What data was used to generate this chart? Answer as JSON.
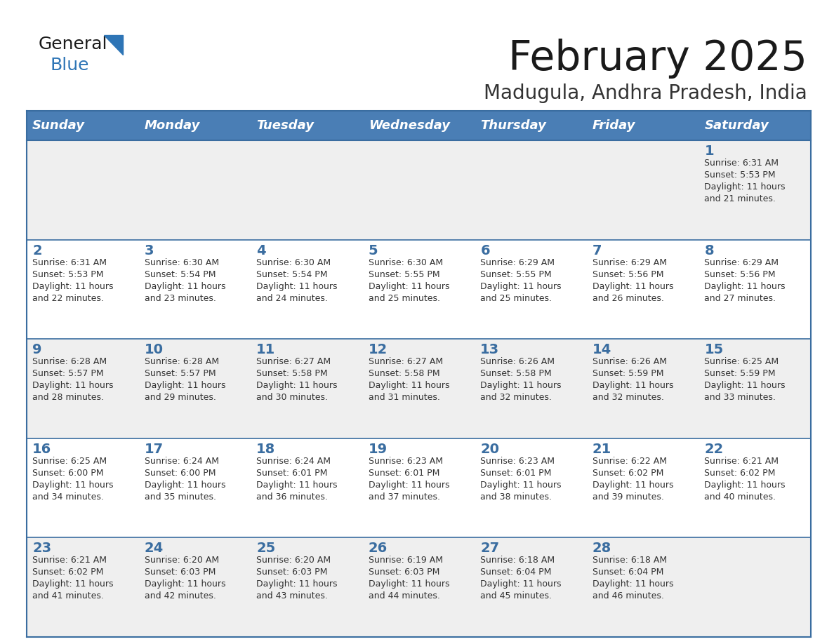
{
  "title": "February 2025",
  "subtitle": "Madugula, Andhra Pradesh, India",
  "days_of_week": [
    "Sunday",
    "Monday",
    "Tuesday",
    "Wednesday",
    "Thursday",
    "Friday",
    "Saturday"
  ],
  "header_bg": "#4a7eb5",
  "header_text": "#ffffff",
  "row_bg_odd": "#efefef",
  "row_bg_even": "#ffffff",
  "day_num_color": "#3a6da0",
  "cell_text_color": "#333333",
  "border_color": "#3a6da0",
  "title_color": "#1a1a1a",
  "subtitle_color": "#333333",
  "logo_general_color": "#1a1a1a",
  "logo_blue_color": "#2e75b6",
  "calendar": [
    [
      {
        "day": null,
        "sunrise": null,
        "sunset": null,
        "daylight_line1": null,
        "daylight_line2": null
      },
      {
        "day": null,
        "sunrise": null,
        "sunset": null,
        "daylight_line1": null,
        "daylight_line2": null
      },
      {
        "day": null,
        "sunrise": null,
        "sunset": null,
        "daylight_line1": null,
        "daylight_line2": null
      },
      {
        "day": null,
        "sunrise": null,
        "sunset": null,
        "daylight_line1": null,
        "daylight_line2": null
      },
      {
        "day": null,
        "sunrise": null,
        "sunset": null,
        "daylight_line1": null,
        "daylight_line2": null
      },
      {
        "day": null,
        "sunrise": null,
        "sunset": null,
        "daylight_line1": null,
        "daylight_line2": null
      },
      {
        "day": "1",
        "sunrise": "Sunrise: 6:31 AM",
        "sunset": "Sunset: 5:53 PM",
        "daylight_line1": "Daylight: 11 hours",
        "daylight_line2": "and 21 minutes."
      }
    ],
    [
      {
        "day": "2",
        "sunrise": "Sunrise: 6:31 AM",
        "sunset": "Sunset: 5:53 PM",
        "daylight_line1": "Daylight: 11 hours",
        "daylight_line2": "and 22 minutes."
      },
      {
        "day": "3",
        "sunrise": "Sunrise: 6:30 AM",
        "sunset": "Sunset: 5:54 PM",
        "daylight_line1": "Daylight: 11 hours",
        "daylight_line2": "and 23 minutes."
      },
      {
        "day": "4",
        "sunrise": "Sunrise: 6:30 AM",
        "sunset": "Sunset: 5:54 PM",
        "daylight_line1": "Daylight: 11 hours",
        "daylight_line2": "and 24 minutes."
      },
      {
        "day": "5",
        "sunrise": "Sunrise: 6:30 AM",
        "sunset": "Sunset: 5:55 PM",
        "daylight_line1": "Daylight: 11 hours",
        "daylight_line2": "and 25 minutes."
      },
      {
        "day": "6",
        "sunrise": "Sunrise: 6:29 AM",
        "sunset": "Sunset: 5:55 PM",
        "daylight_line1": "Daylight: 11 hours",
        "daylight_line2": "and 25 minutes."
      },
      {
        "day": "7",
        "sunrise": "Sunrise: 6:29 AM",
        "sunset": "Sunset: 5:56 PM",
        "daylight_line1": "Daylight: 11 hours",
        "daylight_line2": "and 26 minutes."
      },
      {
        "day": "8",
        "sunrise": "Sunrise: 6:29 AM",
        "sunset": "Sunset: 5:56 PM",
        "daylight_line1": "Daylight: 11 hours",
        "daylight_line2": "and 27 minutes."
      }
    ],
    [
      {
        "day": "9",
        "sunrise": "Sunrise: 6:28 AM",
        "sunset": "Sunset: 5:57 PM",
        "daylight_line1": "Daylight: 11 hours",
        "daylight_line2": "and 28 minutes."
      },
      {
        "day": "10",
        "sunrise": "Sunrise: 6:28 AM",
        "sunset": "Sunset: 5:57 PM",
        "daylight_line1": "Daylight: 11 hours",
        "daylight_line2": "and 29 minutes."
      },
      {
        "day": "11",
        "sunrise": "Sunrise: 6:27 AM",
        "sunset": "Sunset: 5:58 PM",
        "daylight_line1": "Daylight: 11 hours",
        "daylight_line2": "and 30 minutes."
      },
      {
        "day": "12",
        "sunrise": "Sunrise: 6:27 AM",
        "sunset": "Sunset: 5:58 PM",
        "daylight_line1": "Daylight: 11 hours",
        "daylight_line2": "and 31 minutes."
      },
      {
        "day": "13",
        "sunrise": "Sunrise: 6:26 AM",
        "sunset": "Sunset: 5:58 PM",
        "daylight_line1": "Daylight: 11 hours",
        "daylight_line2": "and 32 minutes."
      },
      {
        "day": "14",
        "sunrise": "Sunrise: 6:26 AM",
        "sunset": "Sunset: 5:59 PM",
        "daylight_line1": "Daylight: 11 hours",
        "daylight_line2": "and 32 minutes."
      },
      {
        "day": "15",
        "sunrise": "Sunrise: 6:25 AM",
        "sunset": "Sunset: 5:59 PM",
        "daylight_line1": "Daylight: 11 hours",
        "daylight_line2": "and 33 minutes."
      }
    ],
    [
      {
        "day": "16",
        "sunrise": "Sunrise: 6:25 AM",
        "sunset": "Sunset: 6:00 PM",
        "daylight_line1": "Daylight: 11 hours",
        "daylight_line2": "and 34 minutes."
      },
      {
        "day": "17",
        "sunrise": "Sunrise: 6:24 AM",
        "sunset": "Sunset: 6:00 PM",
        "daylight_line1": "Daylight: 11 hours",
        "daylight_line2": "and 35 minutes."
      },
      {
        "day": "18",
        "sunrise": "Sunrise: 6:24 AM",
        "sunset": "Sunset: 6:01 PM",
        "daylight_line1": "Daylight: 11 hours",
        "daylight_line2": "and 36 minutes."
      },
      {
        "day": "19",
        "sunrise": "Sunrise: 6:23 AM",
        "sunset": "Sunset: 6:01 PM",
        "daylight_line1": "Daylight: 11 hours",
        "daylight_line2": "and 37 minutes."
      },
      {
        "day": "20",
        "sunrise": "Sunrise: 6:23 AM",
        "sunset": "Sunset: 6:01 PM",
        "daylight_line1": "Daylight: 11 hours",
        "daylight_line2": "and 38 minutes."
      },
      {
        "day": "21",
        "sunrise": "Sunrise: 6:22 AM",
        "sunset": "Sunset: 6:02 PM",
        "daylight_line1": "Daylight: 11 hours",
        "daylight_line2": "and 39 minutes."
      },
      {
        "day": "22",
        "sunrise": "Sunrise: 6:21 AM",
        "sunset": "Sunset: 6:02 PM",
        "daylight_line1": "Daylight: 11 hours",
        "daylight_line2": "and 40 minutes."
      }
    ],
    [
      {
        "day": "23",
        "sunrise": "Sunrise: 6:21 AM",
        "sunset": "Sunset: 6:02 PM",
        "daylight_line1": "Daylight: 11 hours",
        "daylight_line2": "and 41 minutes."
      },
      {
        "day": "24",
        "sunrise": "Sunrise: 6:20 AM",
        "sunset": "Sunset: 6:03 PM",
        "daylight_line1": "Daylight: 11 hours",
        "daylight_line2": "and 42 minutes."
      },
      {
        "day": "25",
        "sunrise": "Sunrise: 6:20 AM",
        "sunset": "Sunset: 6:03 PM",
        "daylight_line1": "Daylight: 11 hours",
        "daylight_line2": "and 43 minutes."
      },
      {
        "day": "26",
        "sunrise": "Sunrise: 6:19 AM",
        "sunset": "Sunset: 6:03 PM",
        "daylight_line1": "Daylight: 11 hours",
        "daylight_line2": "and 44 minutes."
      },
      {
        "day": "27",
        "sunrise": "Sunrise: 6:18 AM",
        "sunset": "Sunset: 6:04 PM",
        "daylight_line1": "Daylight: 11 hours",
        "daylight_line2": "and 45 minutes."
      },
      {
        "day": "28",
        "sunrise": "Sunrise: 6:18 AM",
        "sunset": "Sunset: 6:04 PM",
        "daylight_line1": "Daylight: 11 hours",
        "daylight_line2": "and 46 minutes."
      },
      {
        "day": null,
        "sunrise": null,
        "sunset": null,
        "daylight_line1": null,
        "daylight_line2": null
      }
    ]
  ]
}
